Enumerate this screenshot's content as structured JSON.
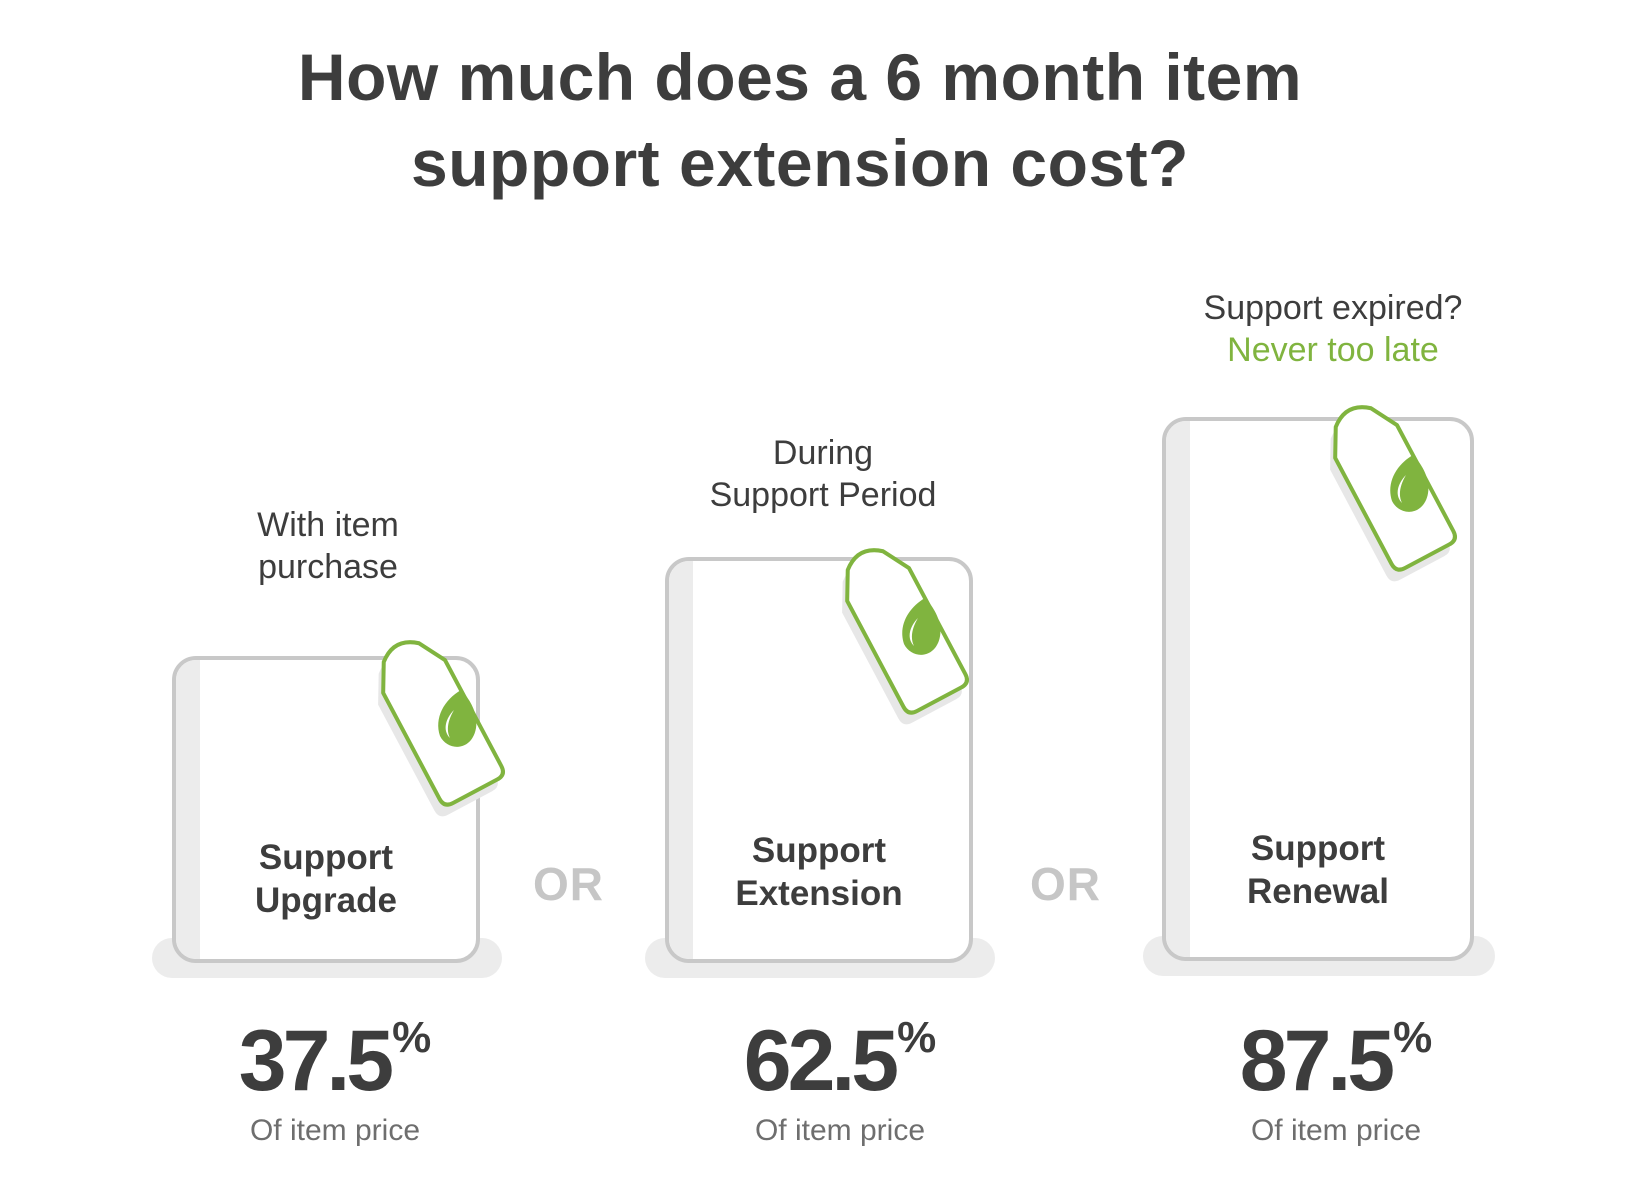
{
  "title": {
    "line1": "How much does a 6 month item",
    "line2": "support extension cost?"
  },
  "tiers": [
    {
      "caption_line1": "With item",
      "caption_line2": "purchase",
      "label_line1": "Support",
      "label_line2": "Upgrade",
      "percent_value": "37.5",
      "percent_sign": "%",
      "sub_label": "Of item price"
    },
    {
      "caption_line1": "During",
      "caption_line2": "Support Period",
      "label_line1": "Support",
      "label_line2": "Extension",
      "percent_value": "62.5",
      "percent_sign": "%",
      "sub_label": "Of item price"
    },
    {
      "caption_line1": "Support expired?",
      "caption_line2": "Never too late",
      "label_line1": "Support",
      "label_line2": "Renewal",
      "percent_value": "87.5",
      "percent_sign": "%",
      "sub_label": "Of item price"
    }
  ],
  "separators": [
    "OR",
    "OR"
  ],
  "colors": {
    "text": "#3d3d3d",
    "accent": "#80b43f",
    "box_border": "#c8c8c8",
    "shade": "#ececec",
    "or_text": "#c6c6c6",
    "sub_text": "#6e6e6e"
  },
  "icons": {
    "price_tag": "price-tag-icon",
    "leaf": "envato-leaf-icon"
  }
}
